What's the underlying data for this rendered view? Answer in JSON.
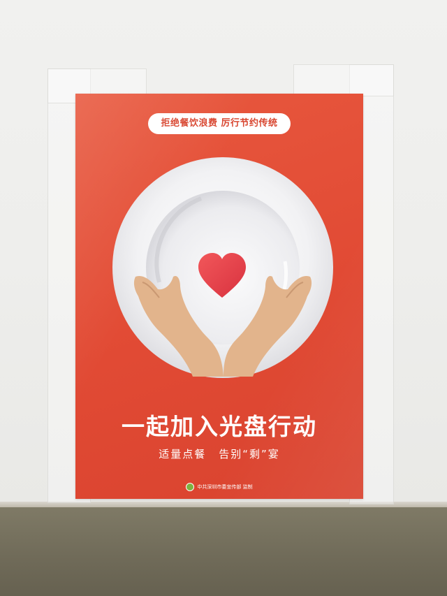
{
  "poster": {
    "slogan": "拒绝餐饮浪费 厉行节约传统",
    "headline": "一起加入光盘行动",
    "subline_left": "适量点餐",
    "subline_right": "告别“剩”宴",
    "footer": "中共深圳市委宣传部 监制"
  },
  "colors": {
    "poster_red": "#e14a34",
    "plate_white": "#f4f4f6",
    "heart_red": "#e8434a",
    "hand_skin": "#e2b48c",
    "wall": "#eeeeec",
    "floor": "#6f6a58"
  },
  "icons": {
    "plate": "plate-icon",
    "heart": "heart-icon",
    "hands": "hands-icon",
    "footer_logo": "logo-icon"
  }
}
